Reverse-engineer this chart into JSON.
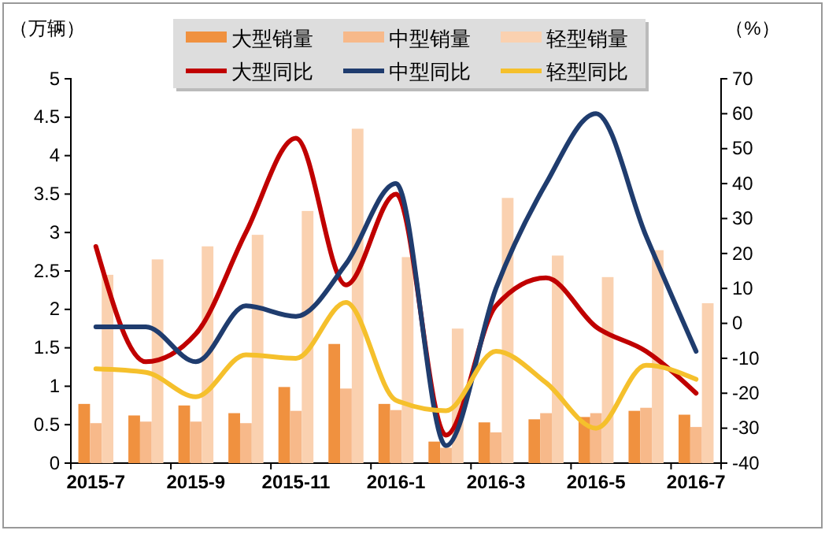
{
  "chart_data": {
    "type": "bar",
    "ylabel": "（万辆）",
    "y2label": "（%）",
    "categories": [
      "2015-7",
      null,
      "2015-9",
      null,
      "2015-11",
      null,
      "2016-1",
      null,
      "2016-3",
      null,
      "2016-5",
      null,
      "2016-7"
    ],
    "ylim": [
      0,
      5
    ],
    "yticks": [
      0,
      0.5,
      1,
      1.5,
      2,
      2.5,
      3,
      3.5,
      4,
      4.5,
      5
    ],
    "y2lim": [
      -40,
      70
    ],
    "y2ticks": [
      -40,
      -30,
      -20,
      -10,
      0,
      10,
      20,
      30,
      40,
      50,
      60,
      70
    ],
    "legend": "top",
    "series": [
      {
        "name": "大型销量",
        "color": "#f0913f",
        "values": [
          0.77,
          0.62,
          0.75,
          0.65,
          0.99,
          1.55,
          0.77,
          0.28,
          0.53,
          0.57,
          0.6,
          0.68,
          0.63
        ]
      },
      {
        "name": "中型销量",
        "color": "#f7b98a",
        "values": [
          0.52,
          0.54,
          0.54,
          0.52,
          0.68,
          0.97,
          0.69,
          0.2,
          0.4,
          0.65,
          0.65,
          0.72,
          0.47
        ]
      },
      {
        "name": "轻型销量",
        "color": "#fad1b0",
        "values": [
          2.45,
          2.65,
          2.82,
          2.97,
          3.28,
          4.35,
          2.68,
          1.75,
          3.45,
          2.7,
          2.42,
          2.77,
          2.08
        ]
      },
      {
        "name": "大型同比",
        "type": "line",
        "axis": "y2",
        "color": "#c00000",
        "values": [
          22,
          -11,
          -3,
          26,
          53,
          11,
          37,
          -32,
          5,
          13,
          -1,
          -8,
          -20
        ]
      },
      {
        "name": "中型同比",
        "type": "line",
        "axis": "y2",
        "color": "#1f3c6e",
        "values": [
          -1,
          -1,
          -11,
          5,
          2,
          17,
          40,
          -35,
          10,
          40,
          60,
          25,
          -8
        ]
      },
      {
        "name": "轻型同比",
        "type": "line",
        "axis": "y2",
        "color": "#f5c02c",
        "values": [
          -13,
          -14,
          -21,
          -9,
          -10,
          6,
          -22,
          -25,
          -8,
          -17,
          -30,
          -12,
          -16
        ]
      }
    ]
  }
}
